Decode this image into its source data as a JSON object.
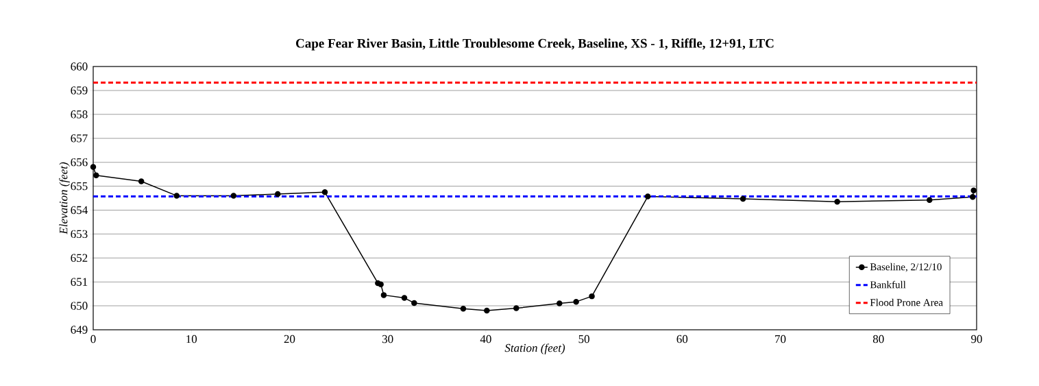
{
  "chart_data": {
    "type": "line",
    "title": "Cape Fear River Basin, Little Troublesome Creek, Baseline, XS - 1, Riffle, 12+91, LTC",
    "xlabel": "Station (feet)",
    "ylabel": "Elevation (feet)",
    "xlim": [
      0,
      90
    ],
    "ylim": [
      649,
      660
    ],
    "xticks": [
      0,
      10,
      20,
      30,
      40,
      50,
      60,
      70,
      80,
      90
    ],
    "yticks": [
      649,
      650,
      651,
      652,
      653,
      654,
      655,
      656,
      657,
      658,
      659,
      660
    ],
    "grid": "y",
    "legend": "bottom right",
    "marker": "circle",
    "series": [
      {
        "name": "Baseline, 2/12/10",
        "color": "#000000",
        "line_style": "solid",
        "x": [
          0,
          0.3,
          4.9,
          8.5,
          14.3,
          18.8,
          23.6,
          29.0,
          29.3,
          29.6,
          31.7,
          32.7,
          37.7,
          40.1,
          43.1,
          47.5,
          49.2,
          50.8,
          56.5,
          66.2,
          75.8,
          85.2,
          89.6,
          89.7
        ],
        "values": [
          655.8,
          655.45,
          655.2,
          654.6,
          654.6,
          654.67,
          654.75,
          650.95,
          650.9,
          650.45,
          650.33,
          650.12,
          649.88,
          649.8,
          649.9,
          650.1,
          650.17,
          650.4,
          654.57,
          654.47,
          654.35,
          654.42,
          654.55,
          654.82
        ]
      },
      {
        "name": "Bankfull",
        "color": "#0000ff",
        "line_style": "dashed",
        "marker": "none",
        "x": [
          0,
          90
        ],
        "values": [
          654.57,
          654.57
        ]
      },
      {
        "name": "Flood Prone Area",
        "color": "#ff0000",
        "line_style": "dashed",
        "marker": "none",
        "x": [
          0,
          90
        ],
        "values": [
          659.33,
          659.33
        ]
      }
    ]
  }
}
